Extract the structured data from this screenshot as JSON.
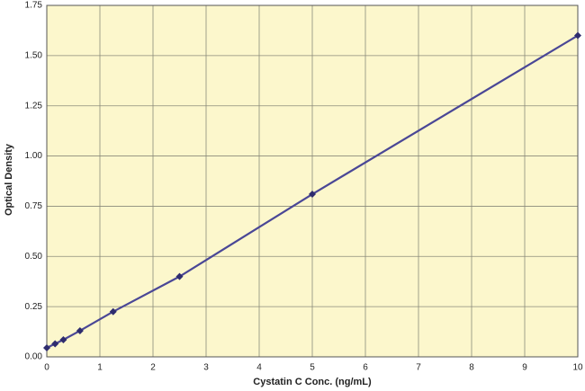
{
  "chart_data": {
    "type": "line",
    "x_label": "Cystatin C Conc. (ng/mL)",
    "y_label": "Optical Density",
    "x": [
      0,
      0.156,
      0.312,
      0.625,
      1.25,
      2.5,
      5,
      10
    ],
    "series": [
      {
        "color": "#4a4796",
        "values": [
          0.045,
          0.065,
          0.085,
          0.13,
          0.225,
          0.4,
          0.81,
          1.6
        ]
      }
    ],
    "xlim": [
      0,
      10
    ],
    "xticks": [
      0,
      1,
      2,
      3,
      4,
      5,
      6,
      7,
      8,
      9,
      10
    ],
    "ylim": [
      0,
      1.75
    ],
    "yticks": [
      {
        "value": 0,
        "label": "0.00"
      },
      {
        "value": 0.25,
        "label": "0.25"
      },
      {
        "value": 0.5,
        "label": "0.50"
      },
      {
        "value": 0.75,
        "label": "0.75"
      },
      {
        "value": 1,
        "label": "1.00"
      },
      {
        "value": 1.25,
        "label": "1.25"
      },
      {
        "value": 1.5,
        "label": "1.50"
      },
      {
        "value": 1.75,
        "label": "1.75"
      }
    ],
    "grid": true
  }
}
